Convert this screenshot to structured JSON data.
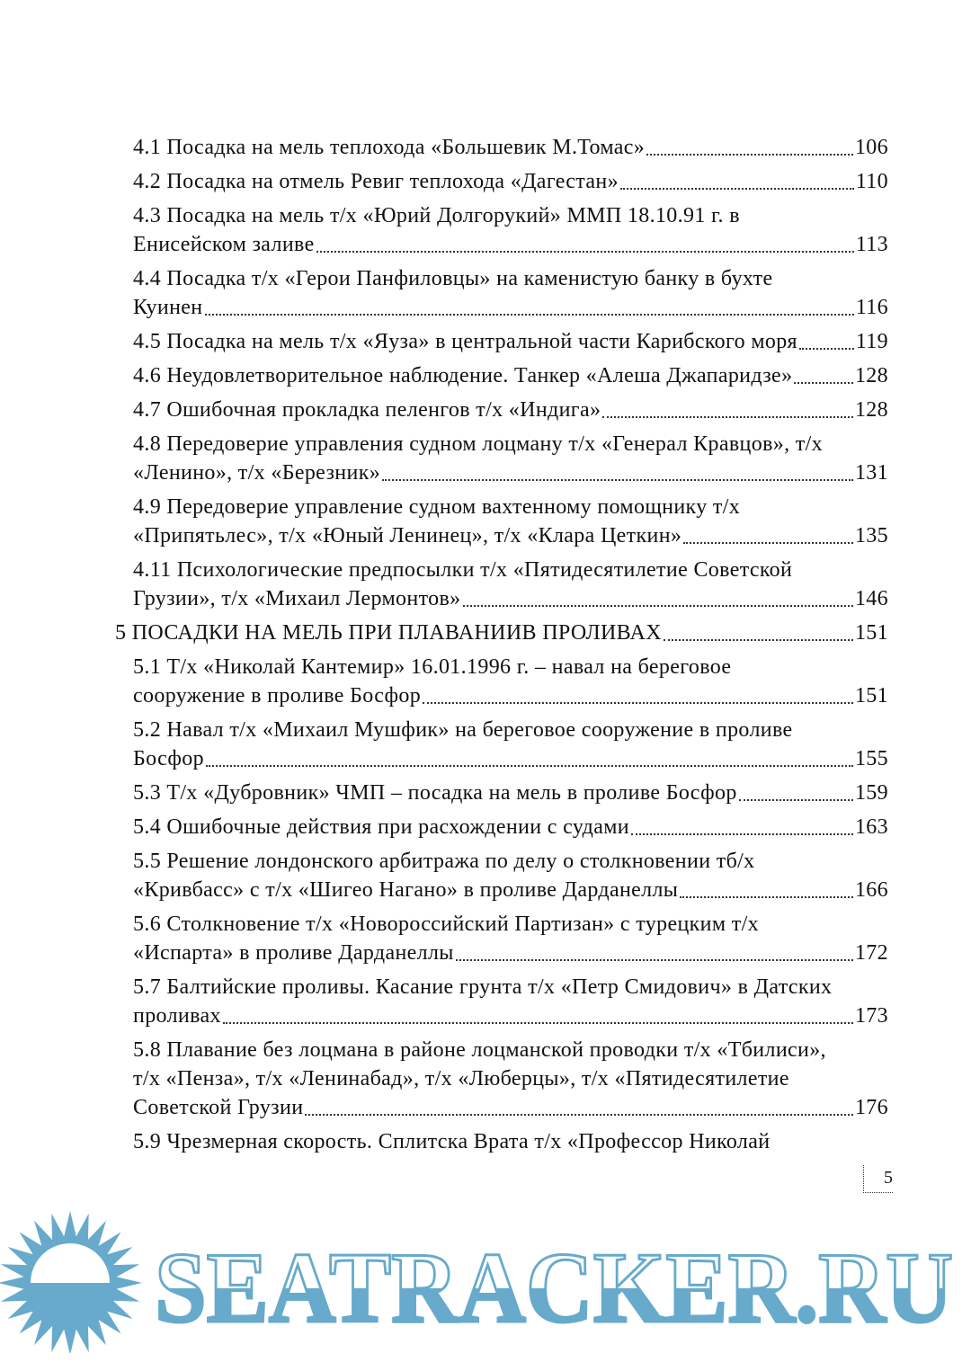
{
  "toc": [
    {
      "lines": [
        "4.1 Посадка на мель теплохода «Большевик М.Томас»"
      ],
      "page": "106"
    },
    {
      "lines": [
        "4.2 Посадка на отмель Ревиг теплохода «Дагестан»"
      ],
      "page": "110"
    },
    {
      "lines": [
        "4.3 Посадка на мель т/х «Юрий Долгорукий» ММП 18.10.91 г. в",
        "Енисейском заливе"
      ],
      "page": "113"
    },
    {
      "lines": [
        "4.4 Посадка т/х «Герои Панфиловцы» на каменистую банку в бухте",
        "Куинен"
      ],
      "page": "116"
    },
    {
      "lines": [
        "4.5 Посадка на мель т/х «Яуза» в центральной части Карибского моря"
      ],
      "page": "119"
    },
    {
      "lines": [
        "4.6 Неудовлетворительное наблюдение. Танкер «Алеша Джапаридзе»"
      ],
      "page": "128"
    },
    {
      "lines": [
        "4.7 Ошибочная прокладка пеленгов т/х «Индига»"
      ],
      "page": "128"
    },
    {
      "lines": [
        "4.8 Передоверие управления судном лоцману т/х «Генерал Кравцов», т/х",
        "«Ленино», т/х «Березник»"
      ],
      "page": "131"
    },
    {
      "lines": [
        "4.9 Передоверие управление судном вахтенному помощнику т/х",
        "«Припятьлес», т/х «Юный Ленинец», т/х «Клара Цеткин»"
      ],
      "page": "135"
    },
    {
      "lines": [
        "4.11 Психологические предпосылки т/х «Пятидесятилетие Советской",
        "Грузии», т/х «Михаил Лермонтов»"
      ],
      "page": "146"
    },
    {
      "lines": [
        "5 ПОСАДКИ НА МЕЛЬ ПРИ ПЛАВАНИИВ ПРОЛИВАХ"
      ],
      "page": "151",
      "level": 1
    },
    {
      "lines": [
        "5.1 Т/х «Николай Кантемир» 16.01.1996 г. – навал на береговое",
        "сооружение в проливе Босфор"
      ],
      "page": "151"
    },
    {
      "lines": [
        "5.2 Навал т/х «Михаил Мушфик» на береговое сооружение в проливе",
        "Босфор"
      ],
      "page": "155"
    },
    {
      "lines": [
        "5.3 Т/х «Дубровник» ЧМП – посадка на мель в проливе Босфор"
      ],
      "page": "159"
    },
    {
      "lines": [
        "5.4 Ошибочные действия при расхождении с судами"
      ],
      "page": "163"
    },
    {
      "lines": [
        "5.5 Решение лондонского арбитража по делу о столкновении тб/х",
        "«Кривбасс» с т/х «Шигео Нагано» в проливе Дарданеллы"
      ],
      "page": "166"
    },
    {
      "lines": [
        "5.6 Столкновение т/х «Новороссийский Партизан» с турецким т/х",
        "«Испарта» в проливе Дарданеллы"
      ],
      "page": "172"
    },
    {
      "lines": [
        "5.7 Балтийские проливы. Касание грунта т/х «Петр Смидович» в Датских",
        "проливах"
      ],
      "page": "173"
    },
    {
      "lines": [
        "5.8 Плавание без лоцмана в районе лоцманской проводки т/х «Тбилиси»,",
        "т/х «Пенза», т/х «Ленинабад», т/х «Люберцы», т/х «Пятидесятилетие",
        "Советской Грузии"
      ],
      "page": "176"
    },
    {
      "lines": [
        "5.9 Чрезмерная скорость. Сплитска Врата т/х «Профессор Николай"
      ],
      "page": ""
    }
  ],
  "page_number": "5",
  "watermark": {
    "text": "SEATRACKER.RU",
    "icon": "sun-icon",
    "color": "#67aacb"
  }
}
